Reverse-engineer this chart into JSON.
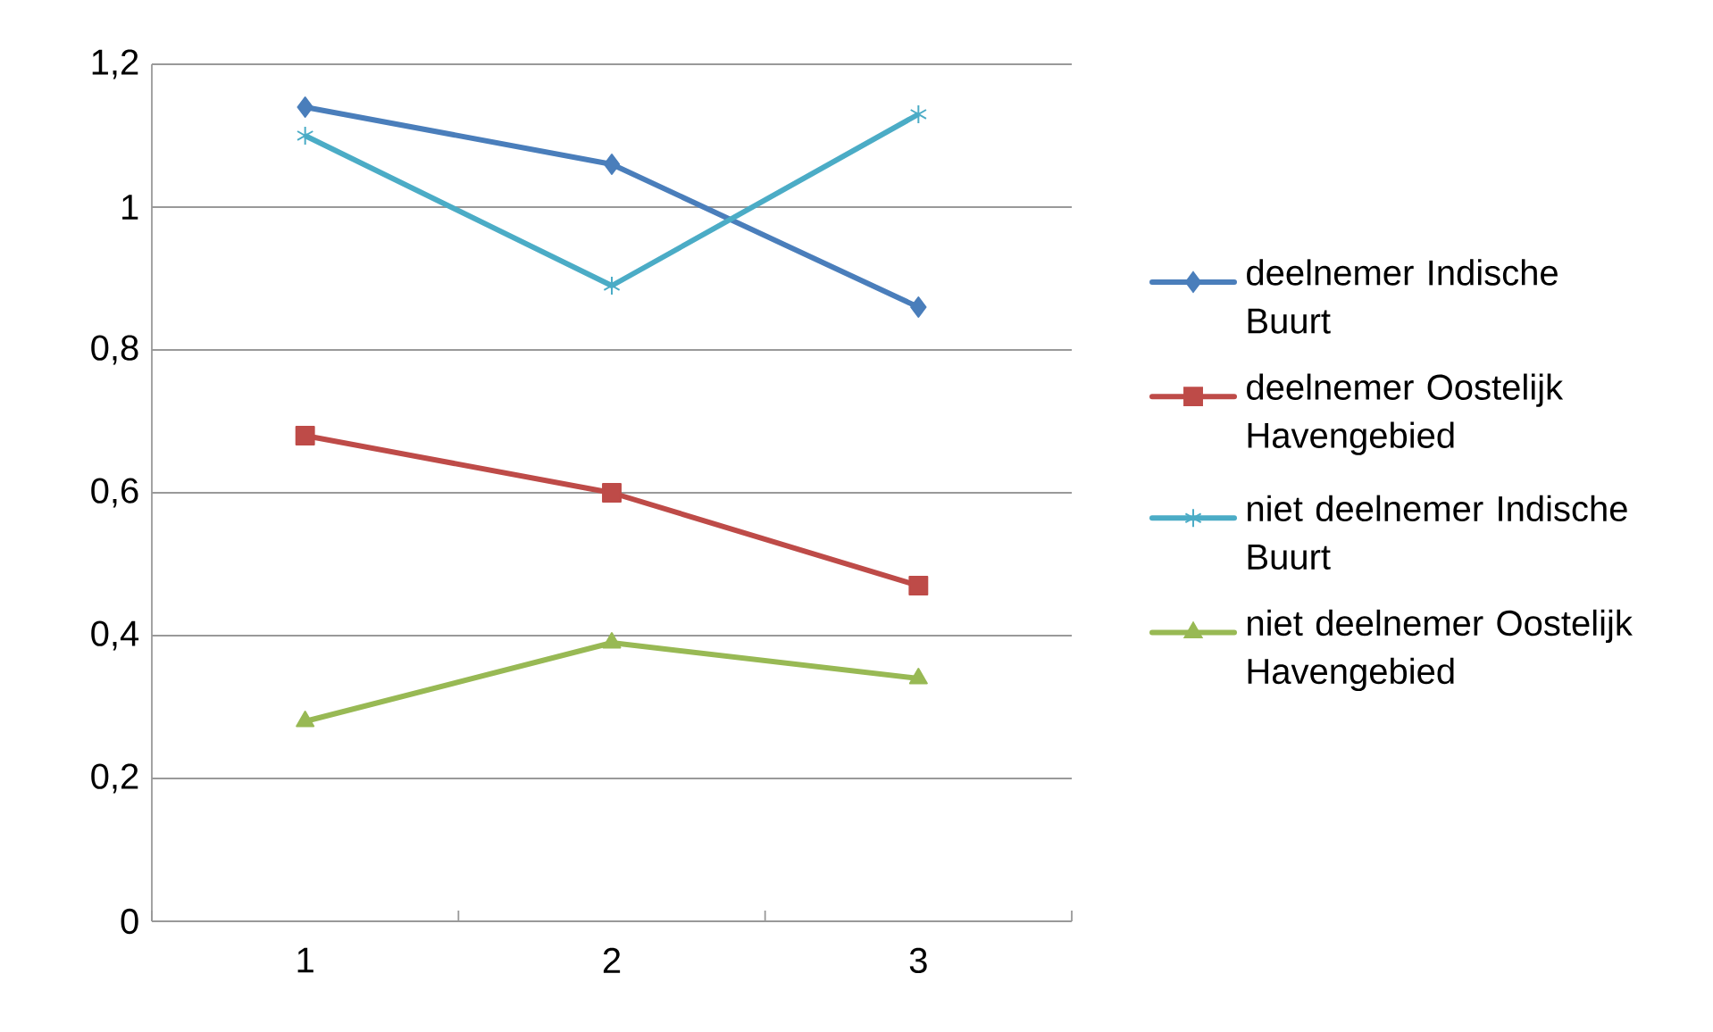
{
  "chart_data": {
    "type": "line",
    "categories": [
      "1",
      "2",
      "3"
    ],
    "series": [
      {
        "name": "deelnemer Indische Buurt",
        "color": "#4a7ebb",
        "marker": "diamond",
        "values": [
          1.14,
          1.06,
          0.86
        ]
      },
      {
        "name": "deelnemer Oostelijk Havengebied",
        "color": "#be4b48",
        "marker": "square",
        "values": [
          0.68,
          0.6,
          0.47
        ]
      },
      {
        "name": "niet deelnemer Indische Buurt",
        "color": "#4bacc6",
        "marker": "cross",
        "values": [
          1.1,
          0.89,
          1.13
        ]
      },
      {
        "name": "niet deelnemer Oostelijk Havengebied",
        "color": "#98b954",
        "marker": "triangle",
        "values": [
          0.28,
          0.39,
          0.34
        ]
      }
    ],
    "ylim": [
      0,
      1.2
    ],
    "yticks": [
      {
        "value": 0,
        "label": "0"
      },
      {
        "value": 0.2,
        "label": "0,2"
      },
      {
        "value": 0.4,
        "label": "0,4"
      },
      {
        "value": 0.6,
        "label": "0,6"
      },
      {
        "value": 0.8,
        "label": "0,8"
      },
      {
        "value": 1,
        "label": "1"
      },
      {
        "value": 1.2,
        "label": "1,2"
      }
    ],
    "grid": "y",
    "legend": "right",
    "line_style": "solid"
  }
}
